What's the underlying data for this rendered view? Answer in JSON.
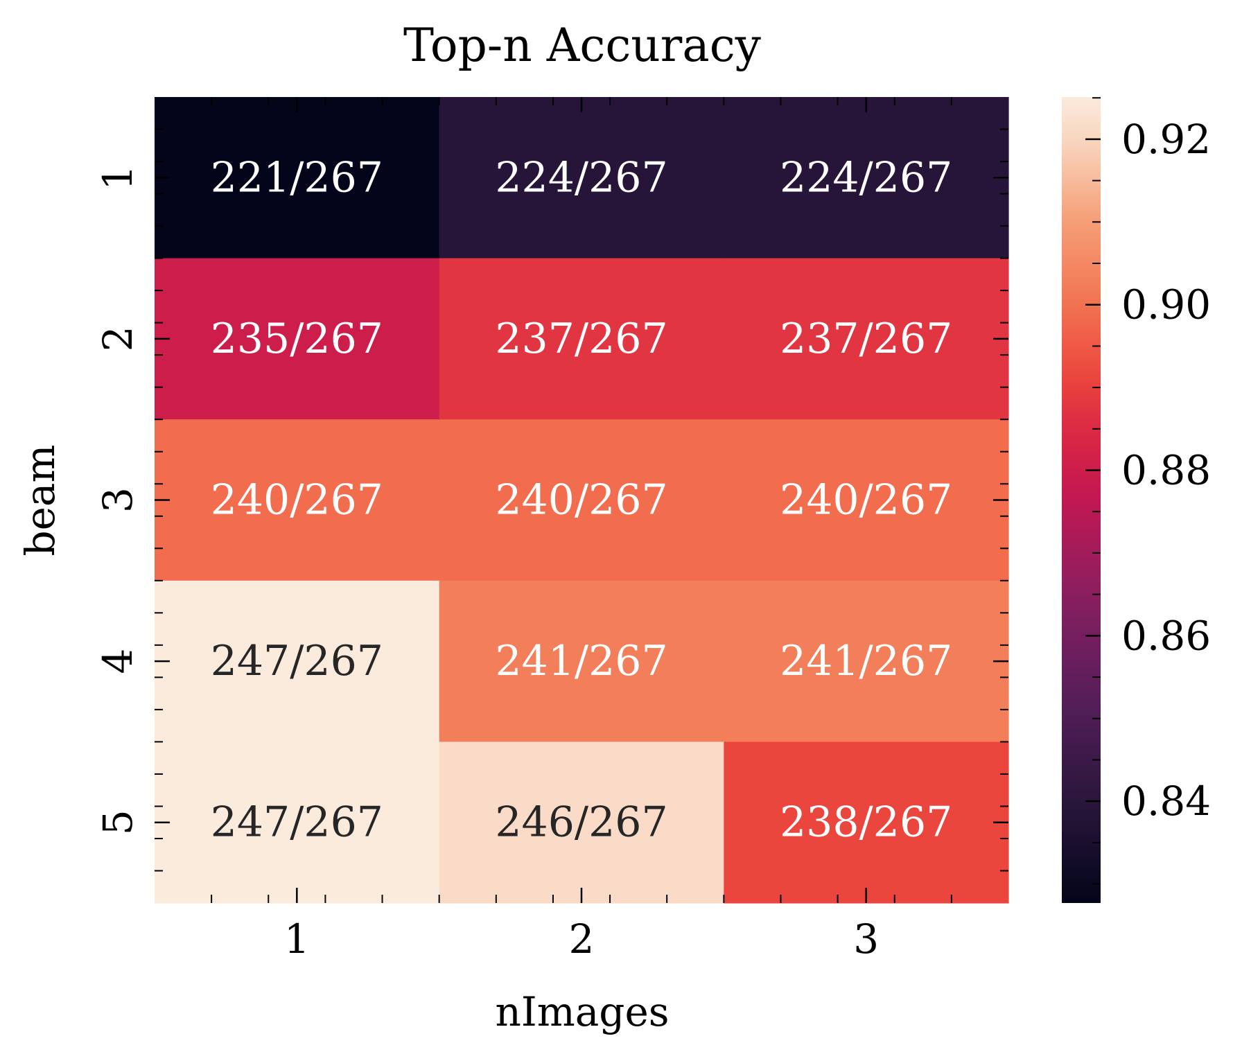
{
  "chart_data": {
    "type": "heatmap",
    "title": "Top-n Accuracy",
    "xlabel": "nImages",
    "ylabel": "beam",
    "x_categories": [
      "1",
      "2",
      "3"
    ],
    "y_categories": [
      "1",
      "2",
      "3",
      "4",
      "5"
    ],
    "values": [
      [
        0.8277,
        0.839,
        0.839
      ],
      [
        0.8801,
        0.8876,
        0.8876
      ],
      [
        0.8989,
        0.8989,
        0.8989
      ],
      [
        0.9251,
        0.9026,
        0.9026
      ],
      [
        0.9251,
        0.9213,
        0.8914
      ]
    ],
    "annotations": [
      [
        "221/267",
        "224/267",
        "224/267"
      ],
      [
        "235/267",
        "237/267",
        "237/267"
      ],
      [
        "240/267",
        "240/267",
        "240/267"
      ],
      [
        "247/267",
        "241/267",
        "241/267"
      ],
      [
        "247/267",
        "246/267",
        "238/267"
      ]
    ],
    "colorbar": {
      "range": [
        0.8277,
        0.9251
      ],
      "ticks": [
        0.84,
        0.86,
        0.88,
        0.9,
        0.92
      ],
      "tick_labels": [
        "0.84",
        "0.86",
        "0.88",
        "0.90",
        "0.92"
      ]
    },
    "colormap": "rocket",
    "grid": false
  }
}
